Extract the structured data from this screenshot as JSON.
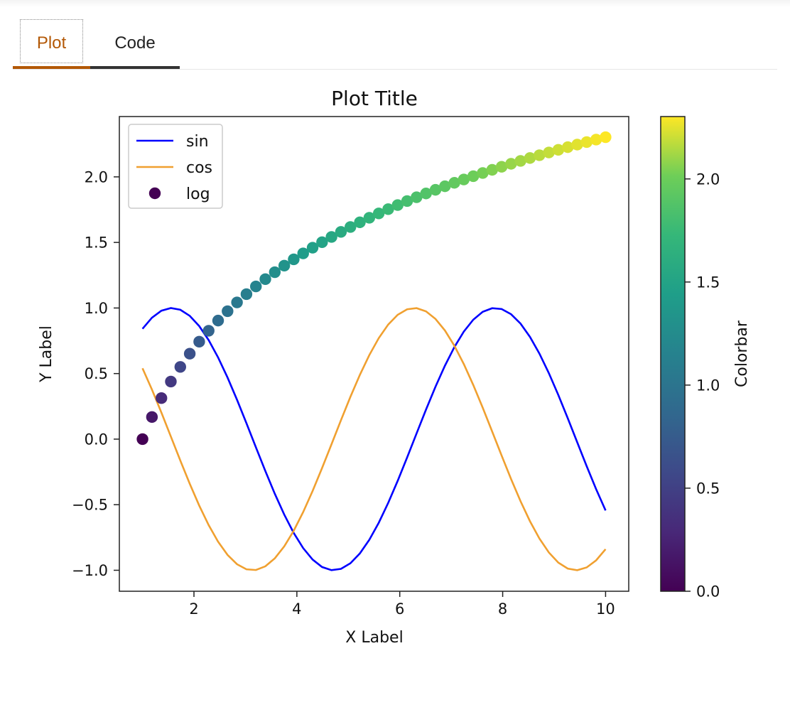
{
  "tabs": {
    "plot_label": "Plot",
    "code_label": "Code",
    "active_color": "#b35806",
    "code_underline_color": "#333333"
  },
  "chart_data": {
    "type": "line",
    "title": "Plot Title",
    "xlabel": "X Label",
    "ylabel": "Y Label",
    "xlim": [
      0.55,
      10.45
    ],
    "ylim": [
      -1.16,
      2.46
    ],
    "xticks": [
      2,
      4,
      6,
      8,
      10
    ],
    "xtick_labels": [
      "2",
      "4",
      "6",
      "8",
      "10"
    ],
    "yticks": [
      -1.0,
      -0.5,
      0.0,
      0.5,
      1.0,
      1.5,
      2.0
    ],
    "ytick_labels": [
      "−1.0",
      "−0.5",
      "0.0",
      "0.5",
      "1.0",
      "1.5",
      "2.0"
    ],
    "x_range": [
      1,
      10
    ],
    "n_points": 50,
    "series": [
      {
        "name": "sin",
        "kind": "line",
        "function": "sin(x)",
        "color": "#0000ff"
      },
      {
        "name": "cos",
        "kind": "line",
        "function": "cos(x)",
        "color": "#f0a030"
      },
      {
        "name": "log",
        "kind": "scatter",
        "function": "ln(x)",
        "colormap": "viridis"
      }
    ],
    "legend": {
      "location": "upper-left",
      "entries": [
        "sin",
        "cos",
        "log"
      ]
    },
    "colorbar": {
      "label": "Colorbar",
      "colormap": "viridis",
      "range": [
        0.0,
        2.302585
      ],
      "ticks": [
        0.0,
        0.5,
        1.0,
        1.5,
        2.0
      ],
      "tick_labels": [
        "0.0",
        "0.5",
        "1.0",
        "1.5",
        "2.0"
      ]
    },
    "grid": false
  }
}
